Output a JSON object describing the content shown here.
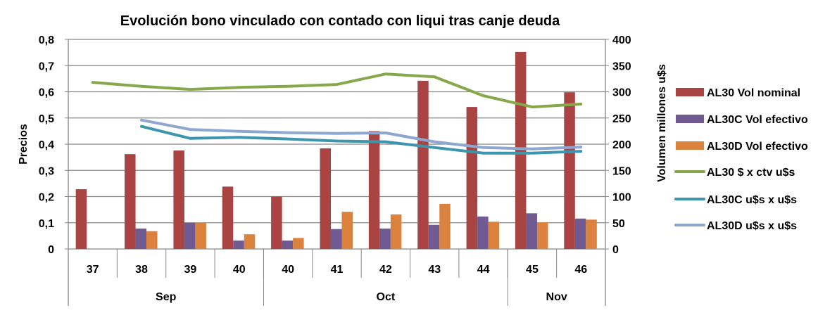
{
  "chart_data": {
    "type": "bar+line",
    "title": "Evolución bono vinculado con contado con liqui tras canje deuda",
    "ylabel_left": "Precios",
    "ylabel_right": "Volumen millones u$s",
    "ylim_left": [
      0,
      0.8
    ],
    "ylim_right": [
      0,
      400
    ],
    "yticks_left": [
      "0",
      "0,1",
      "0,2",
      "0,3",
      "0,4",
      "0,5",
      "0,6",
      "0,7",
      "0,8"
    ],
    "yticks_right": [
      "0",
      "50",
      "100",
      "150",
      "200",
      "250",
      "300",
      "350",
      "400"
    ],
    "grid": true,
    "legend_position": "right",
    "categories": [
      "37",
      "38",
      "39",
      "40",
      "40",
      "41",
      "42",
      "43",
      "44",
      "45",
      "46"
    ],
    "groups": [
      {
        "label": "Sep",
        "count": 4
      },
      {
        "label": "Oct",
        "count": 5
      },
      {
        "label": "Nov",
        "count": 2
      }
    ],
    "bar_series": [
      {
        "name": "AL30 Vol nominal",
        "color": "#A94442",
        "axis": "right",
        "values": [
          114,
          181,
          188,
          119,
          100,
          192,
          225,
          321,
          271,
          376,
          299
        ]
      },
      {
        "name": "AL30C Vol efectivo",
        "color": "#6F5A92",
        "axis": "right",
        "values": [
          null,
          39,
          50,
          16,
          16,
          38,
          39,
          46,
          62,
          68,
          58
        ]
      },
      {
        "name": "AL30D Vol efectivo",
        "color": "#DB823E",
        "axis": "right",
        "values": [
          null,
          34,
          50,
          28,
          21,
          71,
          66,
          86,
          52,
          51,
          56
        ]
      }
    ],
    "line_series": [
      {
        "name": "AL30 $ x ctv u$s",
        "color": "#86A84A",
        "axis": "left",
        "values": [
          0.636,
          0.621,
          0.609,
          0.617,
          0.621,
          0.628,
          0.668,
          0.657,
          0.585,
          0.542,
          0.553
        ]
      },
      {
        "name": "AL30C u$s x u$s",
        "color": "#3C96AE",
        "axis": "left",
        "values": [
          null,
          0.468,
          0.422,
          0.426,
          0.42,
          0.412,
          0.409,
          0.387,
          0.366,
          0.366,
          0.373
        ]
      },
      {
        "name": "AL30D u$s x u$s",
        "color": "#8EA7D0",
        "axis": "left",
        "values": [
          null,
          0.492,
          0.456,
          0.449,
          0.444,
          0.441,
          0.443,
          0.409,
          0.387,
          0.382,
          0.389
        ]
      }
    ]
  }
}
